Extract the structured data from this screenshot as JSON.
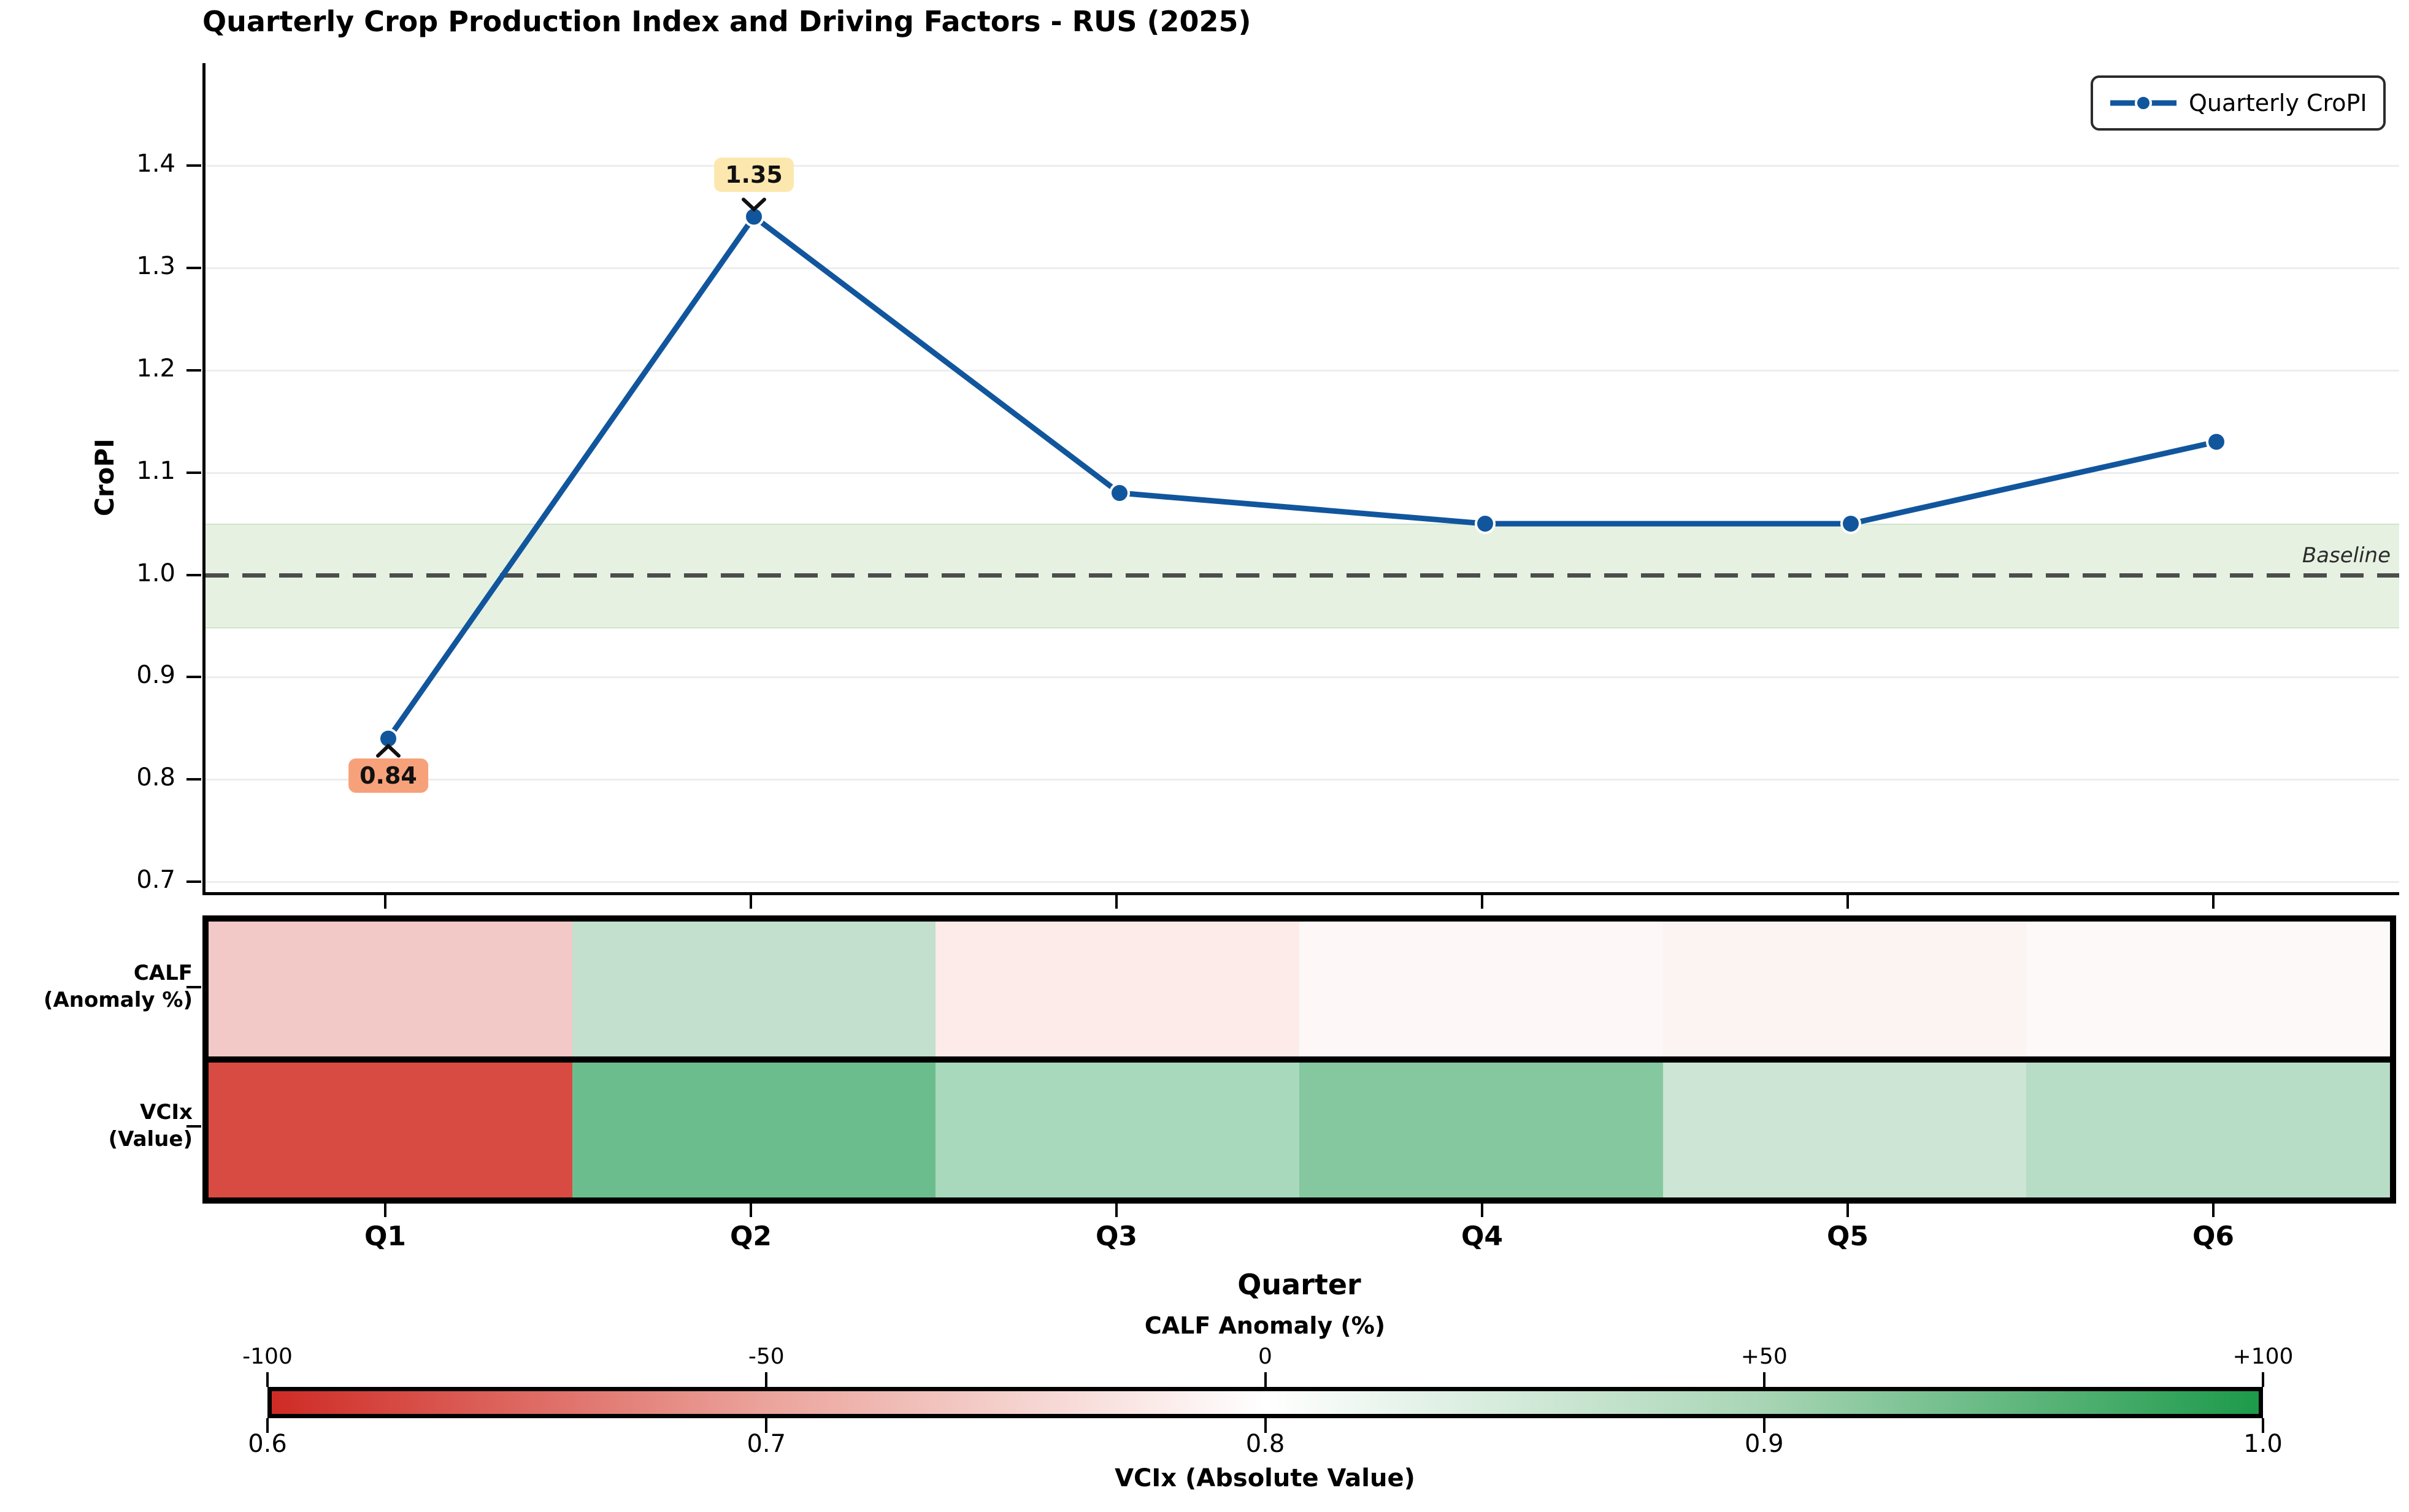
{
  "title": "Quarterly Crop Production Index and Driving Factors - RUS (2025)",
  "legend": {
    "label": "Quarterly CroPI"
  },
  "line_chart": {
    "y_label": "CroPI",
    "baseline_label": "Baseline",
    "line_color": "#11569d",
    "band_color": "#e6f1e2",
    "annotations": [
      {
        "text": "0.84",
        "quarter": "Q1",
        "bg": "#f7a17b"
      },
      {
        "text": "1.35",
        "quarter": "Q2",
        "bg": "#fce8ae"
      }
    ]
  },
  "x_axis": {
    "label": "Quarter",
    "categories": [
      "Q1",
      "Q2",
      "Q3",
      "Q4",
      "Q5",
      "Q6"
    ]
  },
  "heatmap": {
    "rows": [
      {
        "label_line1": "CALF",
        "label_line2": "(Anomaly %)",
        "cell_colors": [
          "#f2c9c6",
          "#c2e0cd",
          "#fcebe8",
          "#fdf8f7",
          "#fbf4f2",
          "#fdf9f9"
        ]
      },
      {
        "label_line1": "VCIx",
        "label_line2": "(Value)",
        "cell_colors": [
          "#d84b42",
          "#6cbd8e",
          "#a8d9bc",
          "#85c8a0",
          "#cce5d4",
          "#b8ddc6"
        ]
      }
    ]
  },
  "colorbar": {
    "top_title": "CALF Anomaly (%)",
    "top_ticks": [
      "-100",
      "-50",
      "0",
      "+50",
      "+100"
    ],
    "bottom_ticks": [
      "0.6",
      "0.7",
      "0.8",
      "0.9",
      "1.0"
    ],
    "bottom_title": "VCIx (Absolute Value)",
    "gradient_stops": [
      "#cf2b25",
      "#eba49c",
      "#ffffff",
      "#a8d5b5",
      "#1d9a4a"
    ]
  },
  "chart_data": [
    {
      "type": "line",
      "title": "Quarterly Crop Production Index and Driving Factors - RUS (2025)",
      "x": [
        "Q1",
        "Q2",
        "Q3",
        "Q4",
        "Q5",
        "Q6"
      ],
      "series": [
        {
          "name": "Quarterly CroPI",
          "values": [
            0.84,
            1.35,
            1.08,
            1.05,
            1.05,
            1.13
          ]
        }
      ],
      "xlabel": "Quarter",
      "ylabel": "CroPI",
      "ylim": [
        0.69,
        1.5
      ],
      "yticks": [
        0.7,
        0.8,
        0.9,
        1.0,
        1.1,
        1.2,
        1.3,
        1.4
      ],
      "grid": true,
      "legend_position": "upper right",
      "baseline": {
        "y": 1.0,
        "label": "Baseline",
        "band": [
          0.95,
          1.05
        ]
      },
      "annotations": [
        {
          "x": "Q1",
          "value": 0.84
        },
        {
          "x": "Q2",
          "value": 1.35
        }
      ]
    },
    {
      "type": "heatmap",
      "categories": [
        "Q1",
        "Q2",
        "Q3",
        "Q4",
        "Q5",
        "Q6"
      ],
      "rows": [
        {
          "name": "CALF (Anomaly %)",
          "values_estimated_from_colorbar": [
            -26,
            26,
            -10,
            -3,
            -5,
            -2
          ],
          "cell_colors": [
            "#f2c9c6",
            "#c2e0cd",
            "#fcebe8",
            "#fdf8f7",
            "#fbf4f2",
            "#fdf9f9"
          ]
        },
        {
          "name": "VCIx (Value)",
          "values_estimated_from_colorbar": [
            0.62,
            0.93,
            0.87,
            0.9,
            0.84,
            0.86
          ],
          "cell_colors": [
            "#d84b42",
            "#6cbd8e",
            "#a8d9bc",
            "#85c8a0",
            "#cce5d4",
            "#b8ddc6"
          ]
        }
      ],
      "colorbar": {
        "title_top": "CALF Anomaly (%)",
        "ticks_top": [
          -100,
          -50,
          0,
          50,
          100
        ],
        "title_bottom": "VCIx (Absolute Value)",
        "ticks_bottom": [
          0.6,
          0.7,
          0.8,
          0.9,
          1.0
        ],
        "diverging_colors": [
          "#cf2b25",
          "#ffffff",
          "#1d9a4a"
        ]
      }
    }
  ]
}
